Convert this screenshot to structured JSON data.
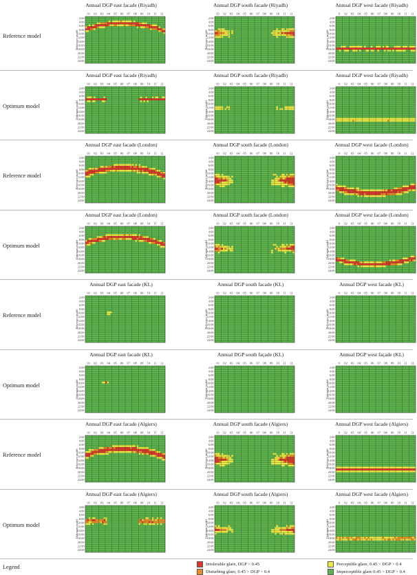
{
  "rows": [
    {
      "label": "Reference model",
      "panels": [
        {
          "title": "Annual DGP east facade (Riyadh)",
          "axis": "Reference model",
          "month_labels": [
            "01",
            "02",
            "03",
            "04",
            "05",
            "06",
            "07",
            "08",
            "09",
            "10",
            "11",
            "12"
          ],
          "pattern": {
            "kind": "band",
            "seasonal": "arc",
            "center": 4.5,
            "width": 1.6,
            "ends": 0.9,
            "intensity": "high"
          }
        },
        {
          "title": "Annual DGP south facade (Riyadh)",
          "axis": "Reference model",
          "month_labels": [
            "01",
            "02",
            "03",
            "04",
            "05",
            "06",
            "07",
            "08",
            "09",
            "10",
            "11",
            "12"
          ],
          "pattern": {
            "kind": "winter",
            "center": 8.5,
            "width": 3,
            "intensity": "medium"
          }
        },
        {
          "title": "Annual DGP west facade (Riyadh)",
          "axis": "Reference model",
          "month_labels": [
            "0",
            "02",
            "03",
            "04",
            "05",
            "06",
            "07",
            "08",
            "09",
            "10",
            "11",
            "12"
          ],
          "pattern": {
            "kind": "band",
            "seasonal": "flat",
            "center": 16.5,
            "width": 1.2,
            "ends": 0.9,
            "intensity": "high"
          }
        }
      ]
    },
    {
      "label": "Optimum model",
      "panels": [
        {
          "title": "Annual DGP east facade (Riyadh)",
          "axis": "Optimum model",
          "month_labels": [
            "01",
            "02",
            "03",
            "04",
            "05",
            "06",
            "07",
            "08",
            "09",
            "10",
            "11",
            "12"
          ],
          "pattern": {
            "kind": "band",
            "seasonal": "split",
            "center": 6.5,
            "width": 1.2,
            "ends": 1,
            "intensity": "medium"
          }
        },
        {
          "title": "Annual DGP south facade (Riyadh)",
          "axis": "Optimum model",
          "month_labels": [
            "01",
            "02",
            "03",
            "04",
            "05",
            "06",
            "07",
            "08",
            "09",
            "10",
            "11",
            "12"
          ],
          "pattern": {
            "kind": "winter",
            "center": 11,
            "width": 1.2,
            "intensity": "low"
          }
        },
        {
          "title": "Annual DGP west facade (Riyadh)",
          "axis": "Optimum model",
          "month_labels": [
            "0",
            "02",
            "03",
            "04",
            "05",
            "06",
            "07",
            "08",
            "09",
            "10",
            "11",
            "12"
          ],
          "pattern": {
            "kind": "band",
            "seasonal": "flat",
            "center": 17,
            "width": 0.9,
            "ends": 0.9,
            "intensity": "medium"
          }
        }
      ]
    },
    {
      "label": "Reference model",
      "panels": [
        {
          "title": "Annual DGP east facade (London)",
          "axis": "Reference model",
          "month_labels": [
            "01",
            "02",
            "03",
            "04",
            "05",
            "06",
            "07",
            "08",
            "09",
            "10",
            "11",
            "12"
          ],
          "pattern": {
            "kind": "band",
            "seasonal": "arc",
            "center": 7,
            "width": 2.2,
            "ends": 0.9,
            "intensity": "high"
          }
        },
        {
          "title": "Annual DGP south facade (London)",
          "axis": "Reference model",
          "month_labels": [
            "01",
            "02",
            "03",
            "04",
            "05",
            "06",
            "07",
            "08",
            "09",
            "10",
            "11",
            "12"
          ],
          "pattern": {
            "kind": "winter",
            "center": 12.5,
            "width": 3.5,
            "intensity": "high"
          }
        },
        {
          "title": "Annual DGP west facade (London)",
          "axis": "Reference model",
          "month_labels": [
            "0",
            "02",
            "03",
            "04",
            "05",
            "06",
            "07",
            "08",
            "09",
            "10",
            "11",
            "12"
          ],
          "pattern": {
            "kind": "band",
            "seasonal": "arcdown",
            "center": 17.5,
            "width": 2.2,
            "ends": 0.9,
            "intensity": "high"
          }
        }
      ]
    },
    {
      "label": "Optimum model",
      "panels": [
        {
          "title": "Annual DGP east facade (London)",
          "axis": "Optimum model",
          "month_labels": [
            "01",
            "02",
            "03",
            "04",
            "05",
            "06",
            "07",
            "08",
            "09",
            "10",
            "11",
            "12"
          ],
          "pattern": {
            "kind": "band",
            "seasonal": "arc",
            "center": 6.5,
            "width": 1.8,
            "ends": 0.9,
            "intensity": "high"
          }
        },
        {
          "title": "Annual DGP south facade (London)",
          "axis": "Optimum model",
          "month_labels": [
            "01",
            "02",
            "03",
            "04",
            "05",
            "06",
            "07",
            "08",
            "09",
            "10",
            "11",
            "12"
          ],
          "pattern": {
            "kind": "winter",
            "center": 11.5,
            "width": 2.5,
            "intensity": "medium"
          }
        },
        {
          "title": "Annual DGP west facade (London)",
          "axis": "Optimum model",
          "month_labels": [
            "0",
            "02",
            "03",
            "04",
            "05",
            "06",
            "07",
            "08",
            "09",
            "10",
            "11",
            "12"
          ],
          "pattern": {
            "kind": "band",
            "seasonal": "arcdown",
            "center": 18,
            "width": 1.6,
            "ends": 0.9,
            "intensity": "high"
          }
        }
      ]
    },
    {
      "label": "Reference model",
      "panels": [
        {
          "title": "Annual DGP east facade (KL)",
          "axis": "Reference model",
          "month_labels": [
            "01",
            "02",
            "03",
            "04",
            "05",
            "06",
            "07",
            "08",
            "09",
            "10",
            "11",
            "12"
          ],
          "pattern": {
            "kind": "spot",
            "month": 3.5,
            "hour": 9,
            "intensity": "high"
          }
        },
        {
          "title": "Annual DGP south facade (KL)",
          "axis": "Reference model",
          "month_labels": [
            "01",
            "02",
            "03",
            "04",
            "05",
            "06",
            "07",
            "08",
            "09",
            "10",
            "11",
            "12"
          ],
          "pattern": {
            "kind": "none"
          }
        },
        {
          "title": "Annual DGP west facade (KL)",
          "axis": "Reference model",
          "month_labels": [
            "0",
            "02",
            "03",
            "04",
            "05",
            "06",
            "07",
            "08",
            "09",
            "10",
            "11",
            "12"
          ],
          "pattern": {
            "kind": "none"
          }
        }
      ]
    },
    {
      "label": "Optimum model",
      "panels": [
        {
          "title": "Annual DGP east facade (KL)",
          "axis": "Optimum model",
          "month_labels": [
            "01",
            "02",
            "03",
            "04",
            "05",
            "06",
            "07",
            "08",
            "09",
            "10",
            "11",
            "12"
          ],
          "pattern": {
            "kind": "spot",
            "month": 3,
            "hour": 8.5,
            "intensity": "medium"
          }
        },
        {
          "title": "Annual DGP south façade (KL)",
          "axis": "Optimum model",
          "month_labels": [
            "01",
            "02",
            "03",
            "04",
            "05",
            "06",
            "07",
            "08",
            "09",
            "10",
            "11",
            "12"
          ],
          "pattern": {
            "kind": "none"
          }
        },
        {
          "title": "Annual DGP west façade (KL)",
          "axis": "Optimum model",
          "month_labels": [
            "0",
            "02",
            "03",
            "04",
            "05",
            "06",
            "07",
            "08",
            "09",
            "10",
            "11",
            "12"
          ],
          "pattern": {
            "kind": "none"
          }
        }
      ]
    },
    {
      "label": "Reference model",
      "panels": [
        {
          "title": "Annual DGP east facade (Algiers)",
          "axis": "Reference model",
          "month_labels": [
            "01",
            "02",
            "03",
            "04",
            "05",
            "06",
            "07",
            "08",
            "09",
            "10",
            "11",
            "12"
          ],
          "pattern": {
            "kind": "band",
            "seasonal": "arc",
            "center": 8,
            "width": 2.2,
            "ends": 0.9,
            "intensity": "high"
          }
        },
        {
          "title": "Annual DGP south facade (Algiers)",
          "axis": "Reference model",
          "month_labels": [
            "01",
            "02",
            "03",
            "04",
            "05",
            "06",
            "07",
            "08",
            "09",
            "10",
            "11",
            "12"
          ],
          "pattern": {
            "kind": "winter",
            "center": 12.5,
            "width": 3.5,
            "intensity": "high"
          }
        },
        {
          "title": "Annual DGP west facade (Algiers)",
          "axis": "Reference model",
          "month_labels": [
            "0",
            "02",
            "03",
            "04",
            "05",
            "06",
            "07",
            "08",
            "09",
            "10",
            "11",
            "12"
          ],
          "pattern": {
            "kind": "band",
            "seasonal": "flat",
            "center": 17.5,
            "width": 1.4,
            "ends": 0.9,
            "intensity": "high"
          }
        }
      ]
    },
    {
      "label": "Optimum model",
      "panels": [
        {
          "title": "Annual DGP east facade (Algiers)",
          "axis": "Optimum model",
          "month_labels": [
            "01",
            "02",
            "03",
            "04",
            "05",
            "06",
            "07",
            "08",
            "09",
            "10",
            "11",
            "12"
          ],
          "pattern": {
            "kind": "band",
            "seasonal": "split",
            "center": 8,
            "width": 1.8,
            "ends": 1,
            "intensity": "medium"
          }
        },
        {
          "title": "Annual DGP south facade (Algiers)",
          "axis": "Optimum model",
          "month_labels": [
            "01",
            "02",
            "03",
            "04",
            "05",
            "06",
            "07",
            "08",
            "09",
            "10",
            "11",
            "12"
          ],
          "pattern": {
            "kind": "winter",
            "center": 12.5,
            "width": 2.5,
            "intensity": "medium"
          }
        },
        {
          "title": "Annual DGP west facade (Algiers)",
          "axis": "Optimum model",
          "month_labels": [
            "0",
            "02",
            "03",
            "04",
            "05",
            "06",
            "07",
            "08",
            "09",
            "10",
            "11",
            "12"
          ],
          "pattern": {
            "kind": "band",
            "seasonal": "flat",
            "center": 17,
            "width": 1.2,
            "ends": 0.9,
            "intensity": "medium"
          }
        }
      ]
    }
  ],
  "hour_labels": [
    "2:00",
    "4:00",
    "6:00",
    "8:00",
    "10:00",
    "12:00",
    "14:00",
    "16:00",
    "18:00",
    "20:00",
    "22:00",
    "24:00"
  ],
  "legend": {
    "title": "Legend",
    "items": [
      {
        "label": "Intolerable glare, DGP > 0.45",
        "color": "#e0342a"
      },
      {
        "label": "Disturbing glare, 0.45 > DGP > 0.4",
        "color": "#ee8c27"
      },
      {
        "label": "Perceptible glare, 0.45 > DGP > 0.4",
        "color": "#f1ea45"
      },
      {
        "label": "Imperceptible glare 0.45 > DGP > 0.4",
        "color": "#5db44c"
      }
    ]
  },
  "colors": {
    "background": "#5db44c",
    "grid": "#2f4f2a",
    "frame": "#333333"
  }
}
